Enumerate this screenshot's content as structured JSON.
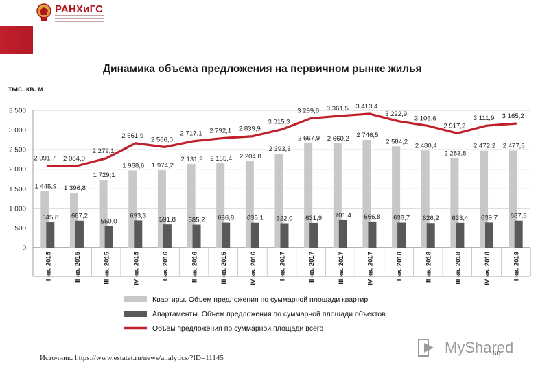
{
  "header": {
    "logo_text": "РАНХиГС",
    "accent_color": "#c0202b"
  },
  "watermark": {
    "text": "MyShared",
    "icon": "myshared-play-icon",
    "color": "#9a9a9a"
  },
  "slide_number": "60",
  "source": "Источник: https://www.estatet.ru/news/analytics/?ID=11145",
  "chart_data": {
    "type": "bar",
    "title": "Динамика объема предложения на первичном рынке жилья",
    "ylabel": "тыс. кв. м",
    "xlabel": "",
    "ylim": [
      0,
      3500
    ],
    "yticks": [
      "0",
      "500",
      "1 000",
      "1 500",
      "2 000",
      "2 500",
      "3 000",
      "3 500"
    ],
    "ytick_values": [
      0,
      500,
      1000,
      1500,
      2000,
      2500,
      3000,
      3500
    ],
    "grid": true,
    "legend_position": "bottom",
    "categories": [
      "I кв. 2015",
      "II кв. 2015",
      "III кв. 2015",
      "IV кв. 2015",
      "I кв. 2016",
      "II кв. 2016",
      "III кв. 2016",
      "IV кв. 2016",
      "I кв. 2017",
      "II кв. 2017",
      "III кв. 2017",
      "IV кв. 2017",
      "I кв. 2018",
      "II кв. 2018",
      "III кв. 2018",
      "IV кв. 2018",
      "I кв. 2019"
    ],
    "series": [
      {
        "name": "Квартиры. Объем предложения по суммарной площади квартир",
        "kind": "bar",
        "color": "#c8c8c8",
        "values": [
          1445.9,
          1396.8,
          1729.1,
          1968.6,
          1974.2,
          2131.9,
          2155.4,
          2204.8,
          2393.3,
          2667.9,
          2660.2,
          2746.5,
          2584.2,
          2480.4,
          2283.8,
          2472.2,
          2477.6
        ],
        "labels": [
          "1 445,9",
          "1 396,8",
          "1 729,1",
          "1 968,6",
          "1 974,2",
          "2 131,9",
          "2 155,4",
          "2 204,8",
          "2 393,3",
          "2 667,9",
          "2 660,2",
          "2 746,5",
          "2 584,2",
          "2 480,4",
          "2 283,8",
          "2 472,2",
          "2 477,6"
        ]
      },
      {
        "name": "Апартаменты. Объем предложения по суммарной площади объектов",
        "kind": "bar",
        "color": "#595959",
        "values": [
          645.8,
          687.2,
          550.0,
          693.3,
          591.8,
          585.2,
          636.8,
          635.1,
          622.0,
          631.9,
          701.4,
          666.8,
          638.7,
          626.2,
          633.4,
          639.7,
          687.6
        ],
        "labels": [
          "645,8",
          "687,2",
          "550,0",
          "693,3",
          "591,8",
          "585,2",
          "636,8",
          "635,1",
          "622,0",
          "631,9",
          "701,4",
          "666,8",
          "638,7",
          "626,2",
          "633,4",
          "639,7",
          "687,6"
        ]
      },
      {
        "name": "Объем предложения по суммарной площади всего",
        "kind": "line",
        "color": "#c0202b",
        "values": [
          2091.7,
          2084.0,
          2279.1,
          2661.9,
          2566.0,
          2717.1,
          2792.1,
          2839.9,
          3015.3,
          3299.8,
          3361.5,
          3413.4,
          3222.9,
          3106.6,
          2917.2,
          3111.9,
          3165.2
        ],
        "labels": [
          "2 091,7",
          "2 084,0",
          "2 279,1",
          "2 661,9",
          "2 566,0",
          "2 717,1",
          "2 792,1",
          "2 839,9",
          "3 015,3",
          "3 299,8",
          "3 361,5",
          "3 413,4",
          "3 222,9",
          "3 106,6",
          "2 917,2",
          "3 111,9",
          "3 165,2"
        ]
      }
    ]
  }
}
